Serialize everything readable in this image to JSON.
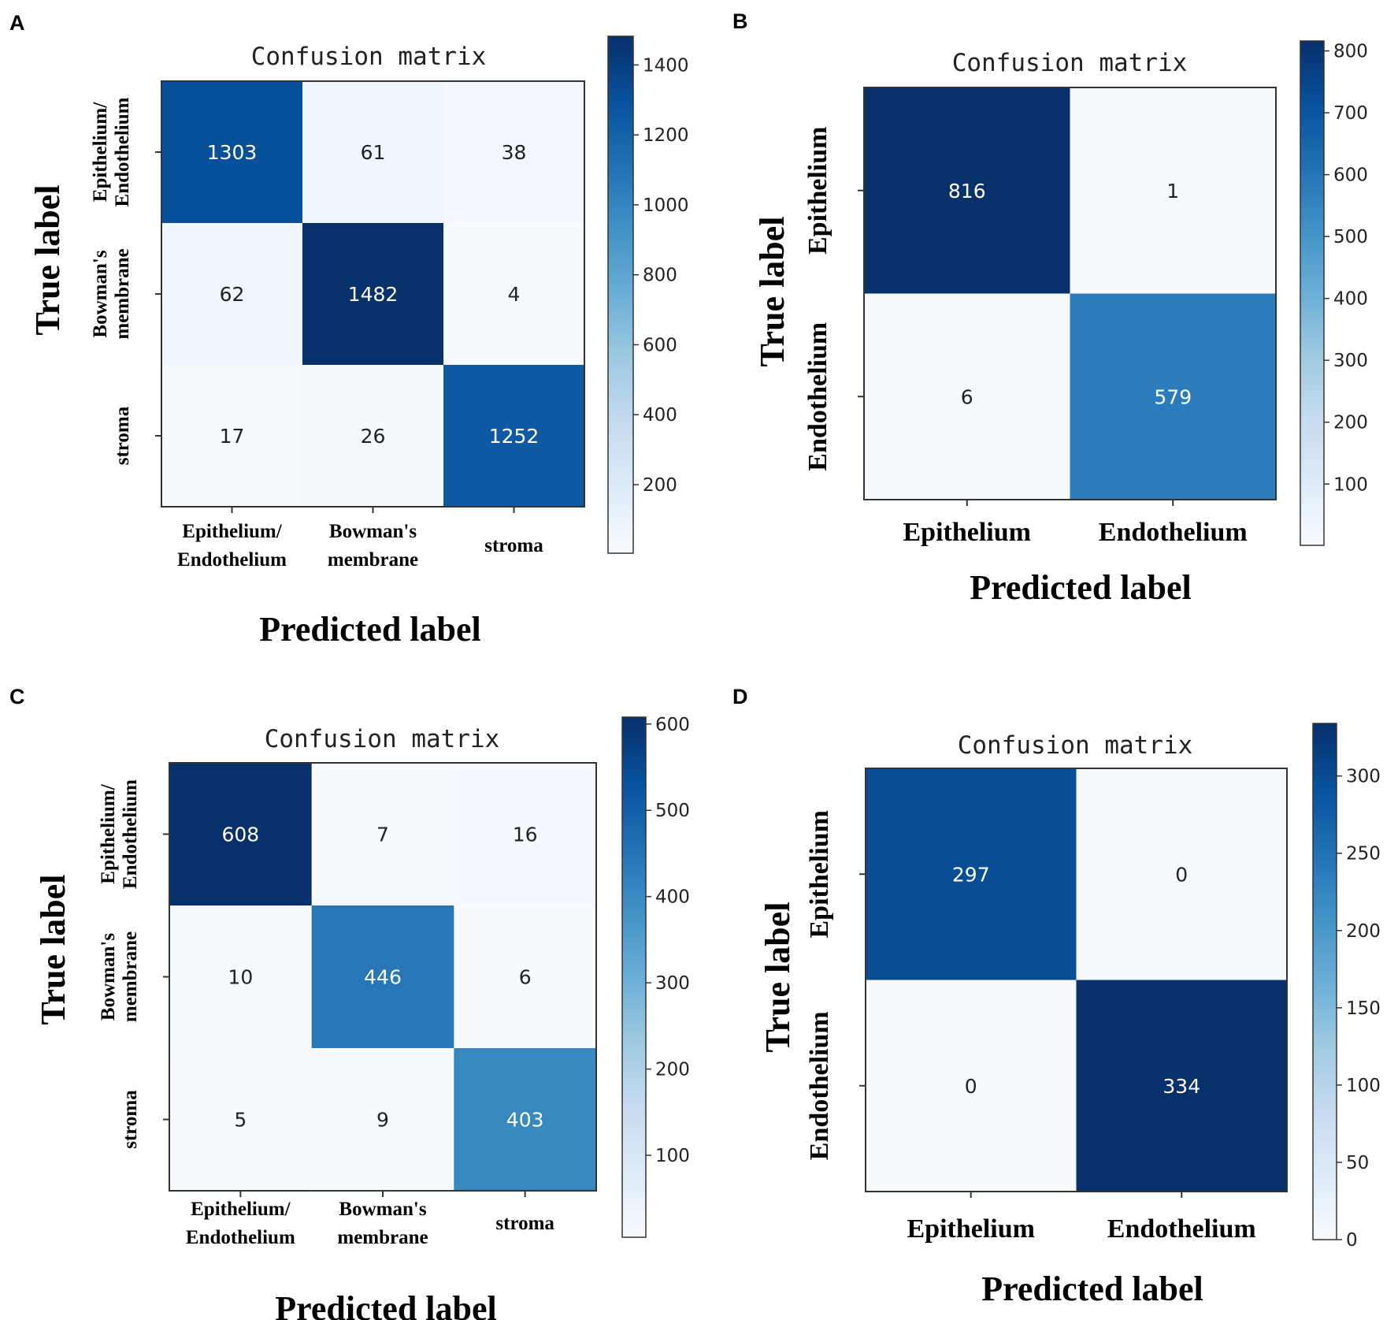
{
  "colors": {
    "low": "#f6faff",
    "high": "#08306b",
    "frame": "#333333",
    "text_dark": "#222222",
    "text_light": "#ffffff"
  },
  "chart_data": [
    {
      "type": "heatmap",
      "panel": "A",
      "title": "Confusion matrix",
      "xlabel": "Predicted label",
      "ylabel": "True label",
      "x_categories": [
        [
          "Epithelium/",
          "Endothelium"
        ],
        [
          "Bowman's",
          "membrane"
        ],
        [
          "stroma"
        ]
      ],
      "y_categories": [
        [
          "Epithelium/",
          "Endothelium"
        ],
        [
          "Bowman's",
          "membrane"
        ],
        [
          "stroma"
        ]
      ],
      "values": [
        [
          1303,
          61,
          38
        ],
        [
          62,
          1482,
          4
        ],
        [
          17,
          26,
          1252
        ]
      ],
      "colorbar": {
        "min": 4,
        "max": 1482,
        "ticks": [
          200,
          400,
          600,
          800,
          1000,
          1200,
          1400
        ]
      }
    },
    {
      "type": "heatmap",
      "panel": "B",
      "title": "Confusion matrix",
      "xlabel": "Predicted label",
      "ylabel": "True label",
      "x_categories": [
        [
          "Epithelium"
        ],
        [
          "Endothelium"
        ]
      ],
      "y_categories": [
        [
          "Epithelium"
        ],
        [
          "Endothelium"
        ]
      ],
      "values": [
        [
          816,
          1
        ],
        [
          6,
          579
        ]
      ],
      "colorbar": {
        "min": 1,
        "max": 816,
        "ticks": [
          100,
          200,
          300,
          400,
          500,
          600,
          700,
          800
        ]
      }
    },
    {
      "type": "heatmap",
      "panel": "C",
      "title": "Confusion matrix",
      "xlabel": "Predicted label",
      "ylabel": "True label",
      "x_categories": [
        [
          "Epithelium/",
          "Endothelium"
        ],
        [
          "Bowman's",
          "membrane"
        ],
        [
          "stroma"
        ]
      ],
      "y_categories": [
        [
          "Epithelium/",
          "Endothelium"
        ],
        [
          "Bowman's",
          "membrane"
        ],
        [
          "stroma"
        ]
      ],
      "values": [
        [
          608,
          7,
          16
        ],
        [
          10,
          446,
          6
        ],
        [
          5,
          9,
          403
        ]
      ],
      "colorbar": {
        "min": 5,
        "max": 608,
        "ticks": [
          100,
          200,
          300,
          400,
          500,
          600
        ]
      }
    },
    {
      "type": "heatmap",
      "panel": "D",
      "title": "Confusion matrix",
      "xlabel": "Predicted label",
      "ylabel": "True label",
      "x_categories": [
        [
          "Epithelium"
        ],
        [
          "Endothelium"
        ]
      ],
      "y_categories": [
        [
          "Epithelium"
        ],
        [
          "Endothelium"
        ]
      ],
      "values": [
        [
          297,
          0
        ],
        [
          0,
          334
        ]
      ],
      "colorbar": {
        "min": 0,
        "max": 334,
        "ticks": [
          0,
          50,
          100,
          150,
          200,
          250,
          300
        ]
      }
    }
  ]
}
